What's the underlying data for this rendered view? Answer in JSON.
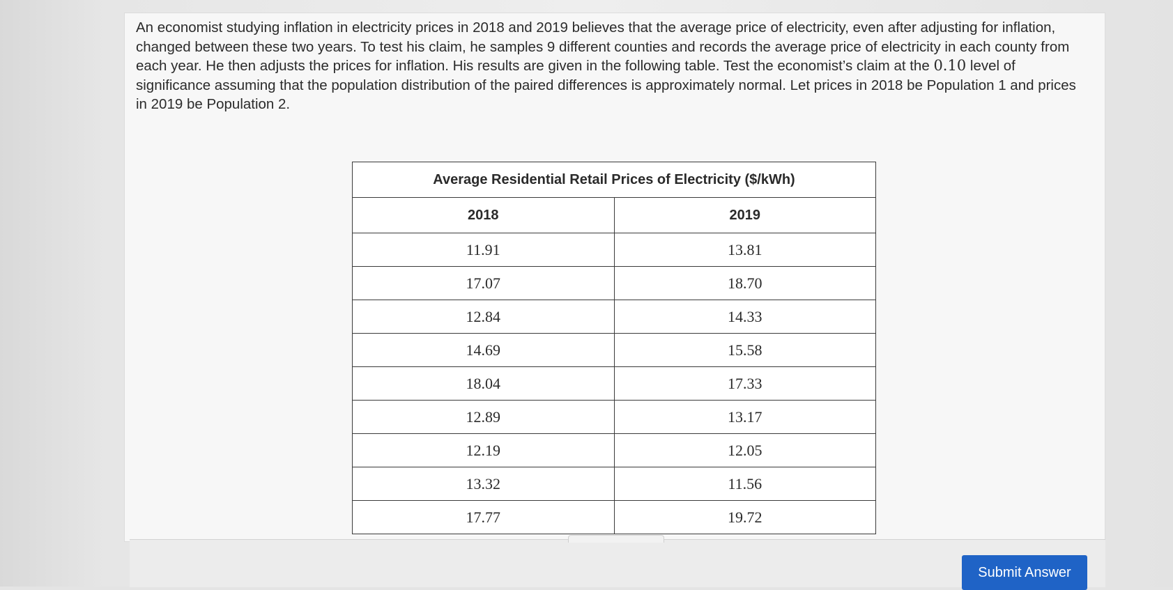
{
  "question": {
    "part1": "An economist studying inflation in electricity prices in 2018 and 2019 believes that the average price of electricity, even after adjusting for inflation, changed between these two years. To test his claim, he samples 9 different counties and records the average price of electricity in each county from each year. He then adjusts the prices for inflation. His results are given in the following table. Test the economist’s claim at the ",
    "significance": "0.10",
    "part2": " level of significance assuming that the population distribution of the paired differences is approximately normal. Let prices in 2018 be Population 1 and prices in 2019 be Population 2."
  },
  "table": {
    "title": "Average Residential Retail Prices of Electricity ($/kWh)",
    "columns": [
      "2018",
      "2019"
    ],
    "rows": [
      [
        "11.91",
        "13.81"
      ],
      [
        "17.07",
        "18.70"
      ],
      [
        "12.84",
        "14.33"
      ],
      [
        "14.69",
        "15.58"
      ],
      [
        "18.04",
        "17.33"
      ],
      [
        "12.89",
        "13.17"
      ],
      [
        "12.19",
        "12.05"
      ],
      [
        "13.32",
        "11.56"
      ],
      [
        "17.77",
        "19.72"
      ]
    ]
  },
  "actions": {
    "submit_label": "Submit Answer"
  },
  "colors": {
    "submit_button": "#1f63c6"
  }
}
